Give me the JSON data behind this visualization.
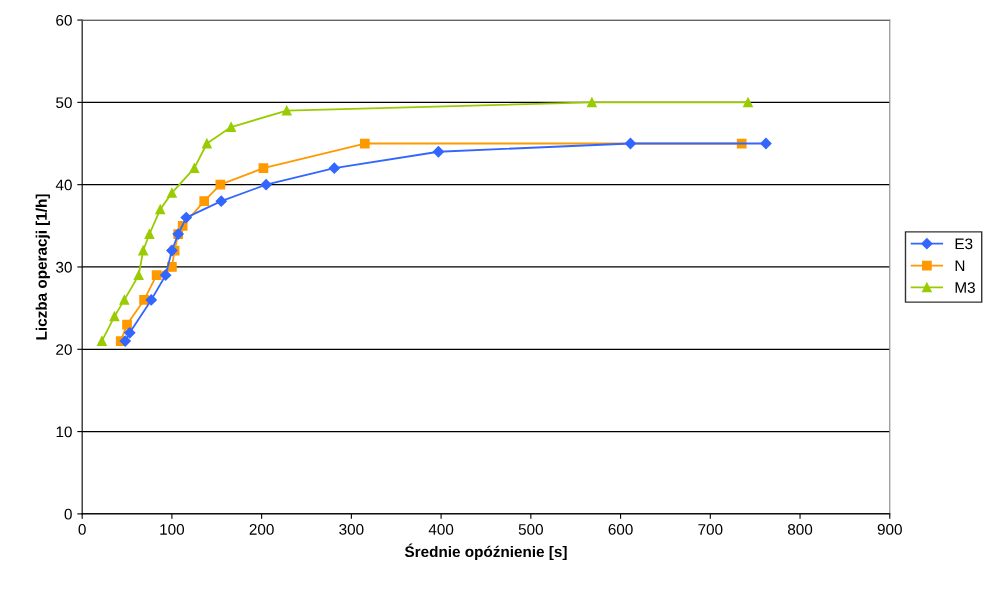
{
  "chart_data": {
    "type": "line",
    "xlabel": "Średnie opóźnienie [s]",
    "ylabel": "Liczba operacji [1/h]",
    "xlim": [
      0,
      900
    ],
    "xticks": [
      0,
      100,
      200,
      300,
      400,
      500,
      600,
      700,
      800,
      900
    ],
    "ylim": [
      0,
      60
    ],
    "yticks": [
      0,
      10,
      20,
      30,
      40,
      50,
      60
    ],
    "grid": "y",
    "legend": "right",
    "series": [
      {
        "name": "E3",
        "color": "#3366ff",
        "marker": "diamond",
        "x": [
          48,
          53,
          77,
          93,
          100,
          107,
          116,
          155,
          205,
          281,
          397,
          611,
          762
        ],
        "values": [
          21,
          22,
          26,
          29,
          32,
          34,
          36,
          38,
          40,
          42,
          44,
          45,
          45
        ]
      },
      {
        "name": "N",
        "color": "#ff9900",
        "marker": "square",
        "x": [
          43,
          50,
          69,
          83,
          100,
          103,
          107,
          112,
          136,
          154,
          202,
          315,
          735
        ],
        "values": [
          21,
          23,
          26,
          29,
          30,
          32,
          34,
          35,
          38,
          40,
          42,
          45,
          45
        ]
      },
      {
        "name": "M3",
        "color": "#99cc00",
        "marker": "triangle",
        "x": [
          22,
          36,
          47,
          63,
          68,
          75,
          87,
          100,
          125,
          139,
          166,
          228,
          568,
          742
        ],
        "values": [
          21,
          24,
          26,
          29,
          32,
          34,
          37,
          39,
          42,
          45,
          47,
          49,
          50,
          50
        ]
      }
    ]
  }
}
